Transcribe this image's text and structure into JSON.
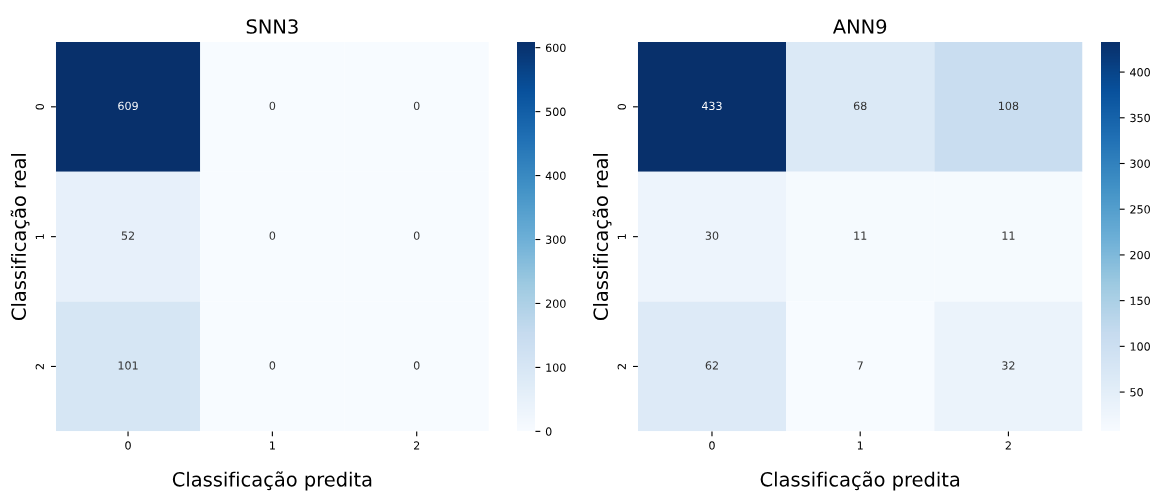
{
  "chart_data": [
    {
      "type": "heatmap",
      "title": "SNN3",
      "xlabel": "Classificação predita",
      "ylabel": "Classificação real",
      "categories": [
        "0",
        "1",
        "2"
      ],
      "y_categories": [
        "0",
        "1",
        "2"
      ],
      "cells": [
        [
          609,
          0,
          0
        ],
        [
          52,
          0,
          0
        ],
        [
          101,
          0,
          0
        ]
      ],
      "data_labels": true,
      "clim": [
        0,
        609
      ],
      "cticks": [
        0,
        100,
        200,
        300,
        400,
        500,
        600
      ]
    },
    {
      "type": "heatmap",
      "title": "ANN9",
      "xlabel": "Classificação predita",
      "ylabel": "Classificação real",
      "categories": [
        "0",
        "1",
        "2"
      ],
      "y_categories": [
        "0",
        "1",
        "2"
      ],
      "cells": [
        [
          433,
          68,
          108
        ],
        [
          30,
          11,
          11
        ],
        [
          62,
          7,
          32
        ]
      ],
      "data_labels": true,
      "clim": [
        7,
        433
      ],
      "cticks": [
        50,
        100,
        150,
        200,
        250,
        300,
        350,
        400
      ]
    }
  ]
}
